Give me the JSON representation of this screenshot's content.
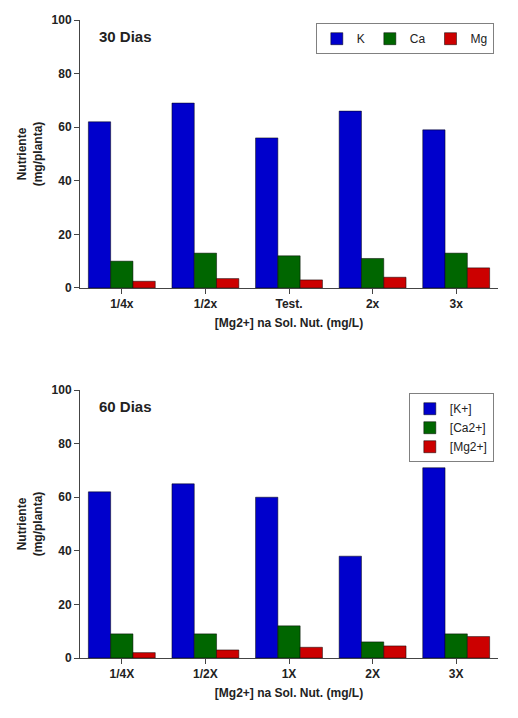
{
  "chart_data": [
    {
      "type": "bar",
      "title": "30 Dias",
      "categories": [
        "1/4x",
        "1/2x",
        "Test.",
        "2x",
        "3x"
      ],
      "series": [
        {
          "name": "K",
          "color": "#0000CC",
          "values": [
            62,
            69,
            56,
            66,
            59
          ]
        },
        {
          "name": "Ca",
          "color": "#006600",
          "values": [
            10,
            13,
            12,
            11,
            13
          ]
        },
        {
          "name": "Mg",
          "color": "#CC0000",
          "values": [
            2.5,
            3.5,
            3,
            4,
            7.5
          ]
        }
      ],
      "xlabel": "[Mg2+] na Sol. Nut. (mg/L)",
      "ylabel": "Nutriente\n(mg/planta)",
      "ylim": [
        0,
        100
      ],
      "yticks": [
        0,
        20,
        40,
        60,
        80,
        100
      ],
      "grid": false,
      "legend": "upper right"
    },
    {
      "type": "bar",
      "title": "60 Dias",
      "categories": [
        "1/4X",
        "1/2X",
        "1X",
        "2X",
        "3X"
      ],
      "series": [
        {
          "name": "[K+]",
          "color": "#0000CC",
          "values": [
            62,
            65,
            60,
            38,
            71
          ]
        },
        {
          "name": "[Ca2+]",
          "color": "#006600",
          "values": [
            9,
            9,
            12,
            6,
            9
          ]
        },
        {
          "name": "[Mg2+]",
          "color": "#CC0000",
          "values": [
            2,
            3,
            4,
            4.5,
            8
          ]
        }
      ],
      "xlabel": "[Mg2+] na Sol. Nut. (mg/L)",
      "ylabel": "Nutriente\n(mg/planta)",
      "ylim": [
        0,
        100
      ],
      "yticks": [
        0,
        20,
        40,
        60,
        80,
        100
      ],
      "grid": false,
      "legend": "upper right"
    }
  ]
}
